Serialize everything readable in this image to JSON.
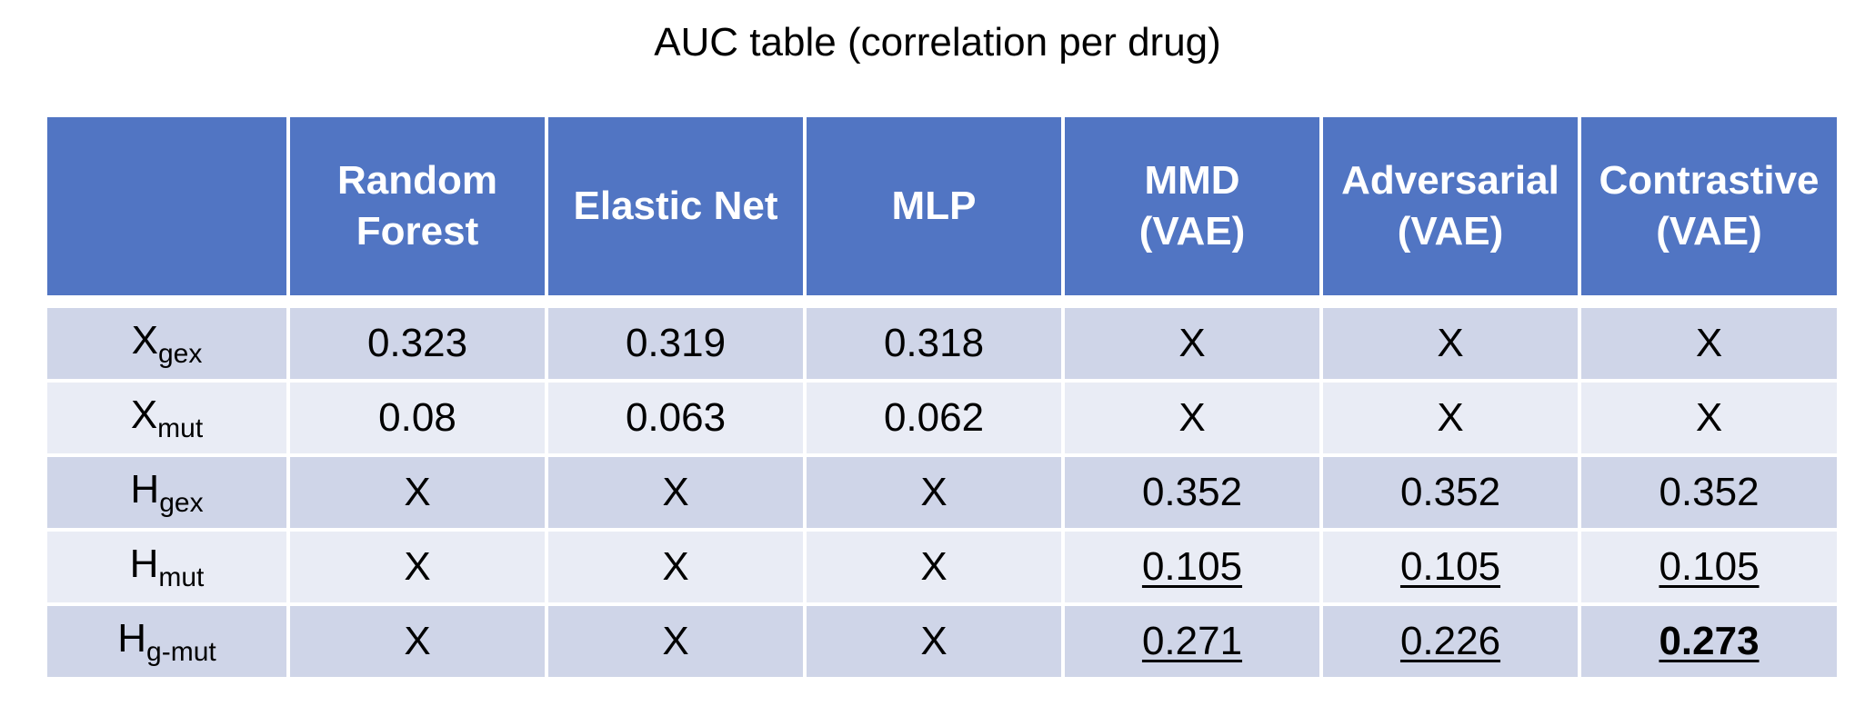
{
  "title": "AUC table (correlation per drug)",
  "colors": {
    "header_bg": "#5175c3",
    "row_dark": "#cfd5e8",
    "row_light": "#e9ecf5"
  },
  "columns": [
    {
      "line1": "",
      "line2": ""
    },
    {
      "line1": "Random",
      "line2": "Forest"
    },
    {
      "line1": "Elastic Net",
      "line2": ""
    },
    {
      "line1": "MLP",
      "line2": ""
    },
    {
      "line1": "MMD",
      "line2": "(VAE)"
    },
    {
      "line1": "Adversarial",
      "line2": "(VAE)"
    },
    {
      "line1": "Contrastive",
      "line2": "(VAE)"
    }
  ],
  "rows": [
    {
      "var": "X",
      "sub": "gex",
      "cells": [
        "0.323",
        "0.319",
        "0.318",
        "X",
        "X",
        "X"
      ]
    },
    {
      "var": "X",
      "sub": "mut",
      "cells": [
        "0.08",
        "0.063",
        "0.062",
        "X",
        "X",
        "X"
      ]
    },
    {
      "var": "H",
      "sub": "gex",
      "cells": [
        "X",
        "X",
        "X",
        "0.352",
        "0.352",
        "0.352"
      ]
    },
    {
      "var": "H",
      "sub": "mut",
      "cells": [
        "X",
        "X",
        "X",
        "0.105",
        "0.105",
        "0.105"
      ]
    },
    {
      "var": "H",
      "sub": "g-mut",
      "cells": [
        "X",
        "X",
        "X",
        "0.271",
        "0.226",
        "0.273"
      ]
    }
  ]
}
